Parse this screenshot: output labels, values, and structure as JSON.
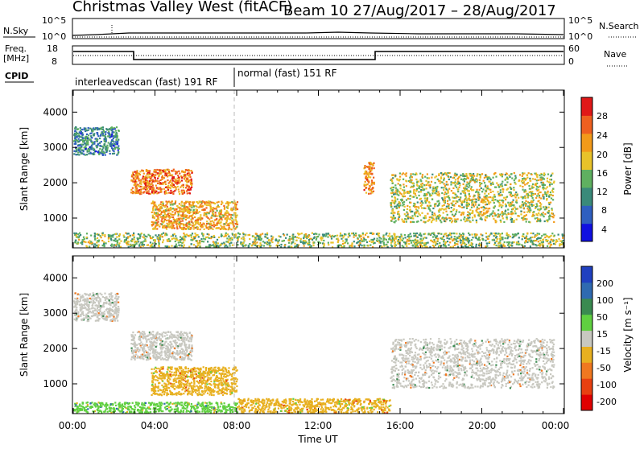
{
  "header": {
    "station": "Christmas Valley West (fitACF)",
    "beam_date": "Beam 10  27/Aug/2017 – 28/Aug/2017"
  },
  "panels": {
    "nsky": {
      "label": "N.Sky",
      "right_label": "N.Search",
      "left_ticks": [
        "10^5",
        "10^0"
      ],
      "right_ticks": [
        "10^5",
        "10^0"
      ]
    },
    "freq": {
      "label_top": "Freq.",
      "label_bottom": "[MHz]",
      "right_label": "Nave",
      "left_ticks": [
        "18",
        "8"
      ],
      "right_ticks": [
        "60",
        "0"
      ]
    },
    "cpid": {
      "label": "CPID",
      "scan1": "interleavedscan (fast) 191 RF",
      "scan2": "normal (fast) 151 RF"
    },
    "power": {
      "ylabel": "Slant Range [km]",
      "cb_label": "Power [dB]",
      "cb_ticks": [
        "28",
        "24",
        "20",
        "16",
        "12",
        "8",
        "4"
      ]
    },
    "velocity": {
      "ylabel": "Slant Range [km]",
      "cb_label": "Velocity [m s⁻¹]",
      "cb_ticks": [
        "200",
        "100",
        "50",
        "15",
        "-15",
        "-50",
        "-100",
        "-200"
      ]
    },
    "xlabel": "Time UT",
    "x_ticks": [
      "00:00",
      "04:00",
      "08:00",
      "12:00",
      "16:00",
      "20:00",
      "00:00"
    ]
  },
  "colors": {
    "power_scale": [
      "#1010e0",
      "#2f5fc0",
      "#3a8a7a",
      "#5fb060",
      "#e8c22a",
      "#f29a1a",
      "#ee6020",
      "#e01818"
    ],
    "velocity_scale": [
      "#2040c0",
      "#2f6ab0",
      "#3a8a50",
      "#60d040",
      "#c8c8c0",
      "#e8b020",
      "#f07820",
      "#e84010",
      "#e00000"
    ]
  },
  "chart_data": [
    {
      "type": "heatmap",
      "panel": "power",
      "title": "",
      "xlabel": "Time UT",
      "ylabel": "Slant Range [km]",
      "xlim": [
        "00:00",
        "24:00"
      ],
      "ylim": [
        180,
        4600
      ],
      "y_ticks": [
        1000,
        2000,
        3000,
        4000
      ],
      "colorbar": {
        "label": "Power [dB]",
        "range": [
          0,
          30
        ],
        "ticks": [
          4,
          8,
          12,
          16,
          20,
          24,
          28
        ]
      },
      "echo_regions": [
        {
          "t": [
            0.0,
            24.0
          ],
          "range_km": [
            200,
            600
          ],
          "power_db": 14
        },
        {
          "t": [
            0.0,
            2.2
          ],
          "range_km": [
            2800,
            3600
          ],
          "power_db": 8
        },
        {
          "t": [
            2.8,
            5.8
          ],
          "range_km": [
            1700,
            2400
          ],
          "power_db": 24
        },
        {
          "t": [
            3.8,
            8.0
          ],
          "range_km": [
            700,
            1500
          ],
          "power_db": 20
        },
        {
          "t": [
            14.2,
            14.7
          ],
          "range_km": [
            1700,
            2600
          ],
          "power_db": 22
        },
        {
          "t": [
            15.5,
            23.5
          ],
          "range_km": [
            900,
            2300
          ],
          "power_db": 16
        }
      ]
    },
    {
      "type": "heatmap",
      "panel": "velocity",
      "title": "",
      "xlabel": "Time UT",
      "ylabel": "Slant Range [km]",
      "xlim": [
        "00:00",
        "24:00"
      ],
      "ylim": [
        180,
        4600
      ],
      "y_ticks": [
        1000,
        2000,
        3000,
        4000
      ],
      "colorbar": {
        "label": "Velocity [m s⁻¹]",
        "ticks": [
          200,
          100,
          50,
          15,
          -15,
          -50,
          -100,
          -200
        ]
      },
      "echo_regions": [
        {
          "t": [
            0.0,
            8.0
          ],
          "range_km": [
            200,
            500
          ],
          "velocity": 30
        },
        {
          "t": [
            8.0,
            15.5
          ],
          "range_km": [
            200,
            600
          ],
          "velocity": -40
        },
        {
          "t": [
            0.0,
            2.2
          ],
          "range_km": [
            2800,
            3600
          ],
          "velocity": 0
        },
        {
          "t": [
            2.8,
            5.8
          ],
          "range_km": [
            1700,
            2500
          ],
          "velocity": 0
        },
        {
          "t": [
            3.8,
            8.0
          ],
          "range_km": [
            700,
            1500
          ],
          "velocity": -30
        },
        {
          "t": [
            15.5,
            23.5
          ],
          "range_km": [
            900,
            2300
          ],
          "velocity": 0
        }
      ]
    }
  ]
}
